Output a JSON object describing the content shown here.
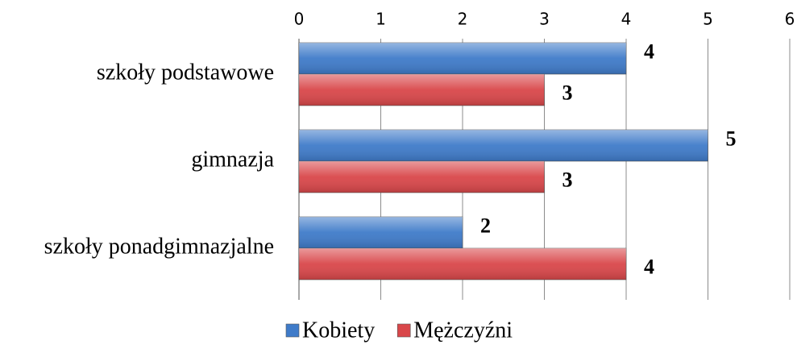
{
  "chart_data": {
    "type": "hbar",
    "categories": [
      "szkoły podstawowe",
      "gimnazja",
      "szkoły ponadgimnazjalne"
    ],
    "series": [
      {
        "name": "Kobiety",
        "color": "#3f7bc9",
        "values": [
          4,
          5,
          2
        ]
      },
      {
        "name": "Mężczyźni",
        "color": "#d9474a",
        "values": [
          3,
          3,
          4
        ]
      }
    ],
    "xlim": [
      0,
      6
    ],
    "xticks": [
      0,
      1,
      2,
      3,
      4,
      5,
      6
    ],
    "grid": true,
    "legend": "bottom"
  }
}
